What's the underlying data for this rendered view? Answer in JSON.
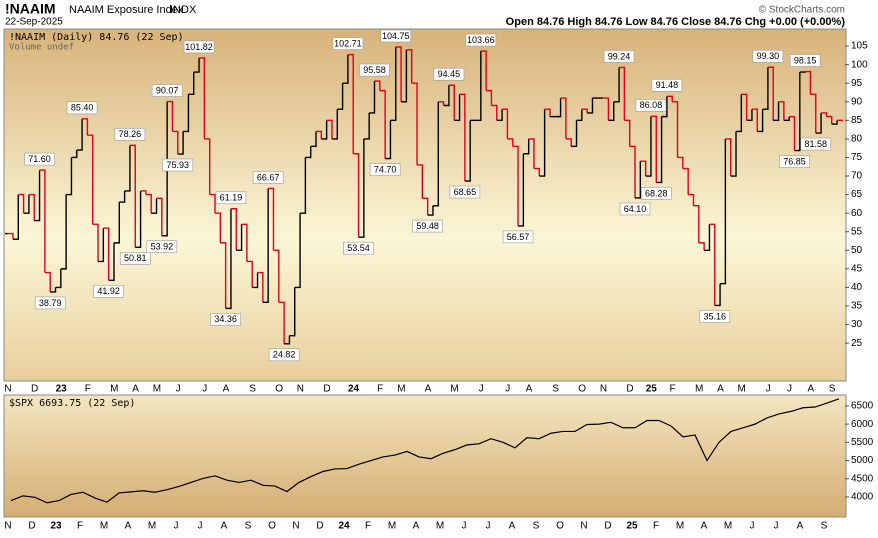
{
  "header": {
    "title": "!NAAIM",
    "subtitle": "NAAIM Exposure Index",
    "exchange": "INDX",
    "date": "22-Sep-2025",
    "credit": "© StockCharts.com",
    "quote": "Open 84.76 High 84.76 Low 84.76 Close 84.76 Chg +0.00 (+0.00%)"
  },
  "chart_data": [
    {
      "type": "step",
      "volume_note": "Volume undef",
      "ylim": [
        14.8,
        109.6
      ],
      "yticks": [
        25,
        30,
        35,
        40,
        45,
        50,
        55,
        60,
        65,
        70,
        75,
        80,
        85,
        90,
        95,
        100,
        105
      ],
      "categories": [
        "N",
        null,
        null,
        null,
        null,
        "D",
        null,
        null,
        null,
        null,
        "23",
        null,
        null,
        null,
        null,
        "F",
        null,
        null,
        null,
        null,
        "M",
        null,
        null,
        null,
        "A",
        null,
        null,
        null,
        "M",
        null,
        null,
        null,
        "J",
        null,
        null,
        null,
        null,
        "J",
        null,
        null,
        null,
        "A",
        null,
        null,
        null,
        null,
        "S",
        null,
        null,
        null,
        null,
        "O",
        null,
        null,
        null,
        "N",
        null,
        null,
        null,
        null,
        "D",
        null,
        null,
        null,
        null,
        "24",
        null,
        null,
        null,
        null,
        "F",
        null,
        null,
        null,
        "M",
        null,
        null,
        null,
        null,
        "A",
        null,
        null,
        null,
        null,
        "M",
        null,
        null,
        null,
        null,
        "J",
        null,
        null,
        null,
        null,
        "J",
        null,
        null,
        null,
        "A",
        null,
        null,
        null,
        null,
        "S",
        null,
        null,
        null,
        null,
        "O",
        null,
        null,
        null,
        "N",
        null,
        null,
        null,
        null,
        "D",
        null,
        null,
        null,
        "25",
        null,
        null,
        null,
        "F",
        null,
        null,
        null,
        null,
        "M",
        null,
        null,
        null,
        "A",
        null,
        null,
        null,
        "M",
        null,
        null,
        null,
        null,
        "J",
        null,
        null,
        null,
        "J",
        null,
        null,
        null,
        "A",
        null,
        null,
        null,
        "S",
        null,
        null
      ],
      "series": [
        {
          "name": "!NAAIM (Daily) 84.76 (22 Sep)",
          "up_color": "#000000",
          "down_color": "#e0001b",
          "values": [
            54.5,
            53,
            65,
            60,
            65,
            58,
            71.6,
            44,
            38.79,
            40,
            45,
            65,
            75,
            77,
            85.4,
            81,
            57,
            47,
            56,
            41.92,
            52,
            63,
            66,
            78.26,
            50.81,
            66,
            65,
            60,
            64,
            53.92,
            90.07,
            82,
            75.93,
            82,
            92,
            98,
            101.82,
            80,
            65,
            60,
            52,
            34.36,
            61.19,
            50,
            57,
            47,
            40,
            44,
            36,
            66.67,
            50,
            36,
            24.82,
            27,
            40,
            60,
            75,
            78,
            82,
            80,
            85,
            80,
            88,
            95,
            102.71,
            76,
            53.54,
            80,
            87,
            95.58,
            93,
            74.7,
            85,
            104.75,
            90,
            104,
            95,
            73,
            64,
            59.48,
            62,
            90,
            89,
            94.45,
            85,
            92,
            68.65,
            85,
            85,
            103.66,
            93,
            89,
            85,
            88,
            80,
            78,
            56.57,
            76,
            80,
            72,
            70,
            88,
            86,
            86,
            91,
            80,
            78,
            85,
            88,
            87,
            91,
            91,
            91,
            85,
            90,
            99.24,
            85,
            78,
            64.1,
            74,
            70,
            86.08,
            68.28,
            86,
            91.48,
            90,
            75,
            72,
            65,
            62,
            52,
            50,
            57,
            35.16,
            41,
            80,
            70,
            82,
            92,
            85,
            88,
            82,
            88,
            99.3,
            85,
            90,
            85,
            86,
            76.85,
            98,
            98.15,
            92,
            81.58,
            87,
            86,
            84,
            85,
            84.76
          ],
          "value_labels": [
            null,
            null,
            null,
            null,
            null,
            null,
            "71.60",
            null,
            "38.79",
            null,
            null,
            null,
            null,
            null,
            "85.40",
            null,
            null,
            null,
            null,
            "41.92",
            null,
            null,
            null,
            "78.26",
            "50.81",
            null,
            null,
            null,
            null,
            "53.92",
            "90.07",
            null,
            "75.93",
            null,
            null,
            null,
            "101.82",
            null,
            null,
            null,
            null,
            "34.36",
            "61.19",
            null,
            null,
            null,
            null,
            null,
            null,
            "66.67",
            null,
            null,
            "24.82",
            null,
            null,
            null,
            null,
            null,
            null,
            null,
            null,
            null,
            null,
            null,
            "102.71",
            null,
            "53.54",
            null,
            null,
            "95.58",
            null,
            "74.70",
            null,
            "104.75",
            null,
            null,
            null,
            null,
            null,
            "59.48",
            null,
            null,
            null,
            "94.45",
            null,
            null,
            "68.65",
            null,
            null,
            "103.66",
            null,
            null,
            null,
            null,
            null,
            null,
            "56.57",
            null,
            null,
            null,
            null,
            null,
            null,
            null,
            null,
            null,
            null,
            null,
            null,
            null,
            null,
            null,
            null,
            null,
            null,
            "99.24",
            null,
            null,
            "64.10",
            null,
            null,
            "86.08",
            "68.28",
            null,
            "91.48",
            null,
            null,
            null,
            null,
            null,
            null,
            null,
            null,
            "35.16",
            null,
            null,
            null,
            null,
            null,
            null,
            null,
            null,
            null,
            "99.30",
            null,
            null,
            null,
            null,
            "76.85",
            null,
            "98.15",
            null,
            "81.58",
            null,
            null,
            null,
            null,
            null
          ]
        }
      ]
    },
    {
      "type": "line",
      "ylim": [
        3450,
        6800
      ],
      "yticks": [
        4000,
        4500,
        5000,
        5500,
        6000,
        6500
      ],
      "categories": [
        "N",
        null,
        "D",
        null,
        "23",
        null,
        "F",
        null,
        "M",
        null,
        "A",
        null,
        "M",
        null,
        "J",
        null,
        "J",
        null,
        "A",
        null,
        "S",
        null,
        "O",
        null,
        "N",
        null,
        "D",
        null,
        "24",
        null,
        "F",
        null,
        "M",
        null,
        "A",
        null,
        "M",
        null,
        "J",
        null,
        "J",
        null,
        "A",
        null,
        "S",
        null,
        "O",
        null,
        "N",
        null,
        "D",
        null,
        "25",
        null,
        "F",
        null,
        "M",
        null,
        "A",
        null,
        "M",
        null,
        "J",
        null,
        "J",
        null,
        "A",
        null,
        "S",
        null
      ],
      "series": [
        {
          "name": "$SPX 6693.75 (22 Sep)",
          "color": "#000000",
          "values": [
            3900,
            4030,
            3990,
            3840,
            3900,
            4070,
            4130,
            3970,
            3860,
            4110,
            4140,
            4170,
            4130,
            4200,
            4290,
            4400,
            4510,
            4580,
            4460,
            4400,
            4460,
            4320,
            4300,
            4150,
            4400,
            4560,
            4700,
            4770,
            4780,
            4900,
            5000,
            5100,
            5150,
            5250,
            5100,
            5050,
            5200,
            5300,
            5430,
            5460,
            5600,
            5500,
            5350,
            5630,
            5600,
            5750,
            5800,
            5800,
            5990,
            6000,
            6050,
            5900,
            5900,
            6100,
            6100,
            5950,
            5650,
            5700,
            5000,
            5500,
            5800,
            5900,
            6000,
            6170,
            6280,
            6350,
            6450,
            6470,
            6580,
            6693.75
          ]
        }
      ]
    }
  ]
}
